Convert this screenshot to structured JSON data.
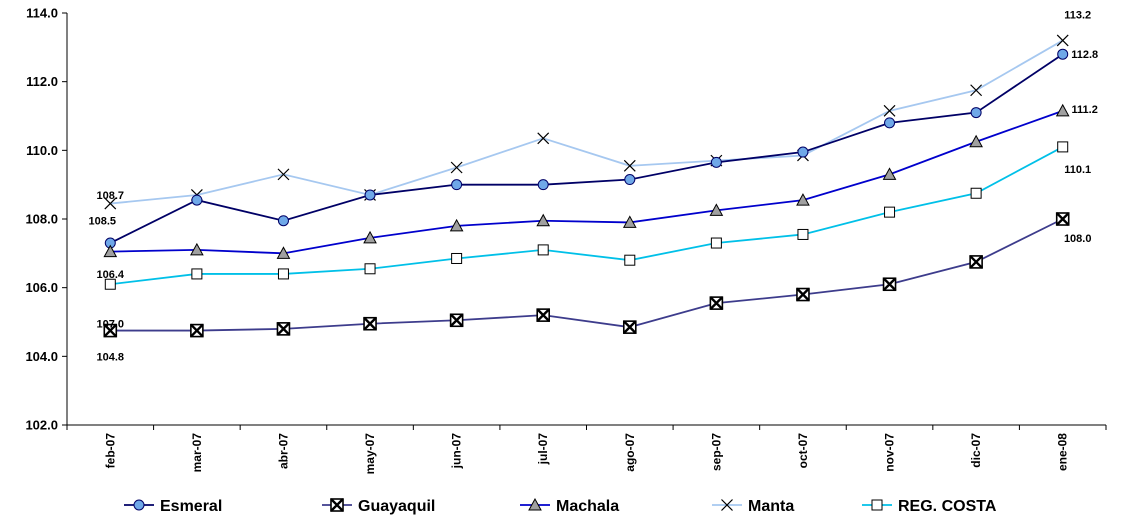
{
  "chart_data": {
    "type": "line",
    "categories": [
      "feb-07",
      "mar-07",
      "abr-07",
      "may-07",
      "jun-07",
      "jul-07",
      "ago-07",
      "sep-07",
      "oct-07",
      "nov-07",
      "dic-07",
      "ene-08"
    ],
    "ylim": [
      102.0,
      114.0
    ],
    "yticks": [
      "102.0",
      "104.0",
      "106.0",
      "108.0",
      "110.0",
      "112.0",
      "114.0"
    ],
    "grid": false,
    "legend_position": "bottom",
    "series": [
      {
        "name": "Esmeral",
        "color": "#000066",
        "marker": "circle",
        "marker_fill": "#6fa8e8",
        "values": [
          107.3,
          108.55,
          107.95,
          108.7,
          109.0,
          109.0,
          109.15,
          109.65,
          109.95,
          110.8,
          111.1,
          112.8
        ]
      },
      {
        "name": "Guayaquil",
        "color": "#3d3c8c",
        "marker": "boxx",
        "marker_fill": "#ffffff",
        "values": [
          104.75,
          104.75,
          104.8,
          104.95,
          105.05,
          105.2,
          104.85,
          105.55,
          105.8,
          106.1,
          106.75,
          108.0
        ]
      },
      {
        "name": "Machala",
        "color": "#0000cc",
        "marker": "triangle",
        "marker_fill": "#a0a0a0",
        "values": [
          107.05,
          107.1,
          107.0,
          107.45,
          107.8,
          107.95,
          107.9,
          108.25,
          108.55,
          109.3,
          110.25,
          111.15
        ]
      },
      {
        "name": "Manta",
        "color": "#a6c8f0",
        "marker": "x",
        "marker_fill": "#000000",
        "values": [
          108.45,
          108.7,
          109.3,
          108.7,
          109.5,
          110.35,
          109.55,
          109.7,
          109.85,
          111.15,
          111.75,
          113.2
        ]
      },
      {
        "name": "REG. COSTA",
        "color": "#00c0e8",
        "marker": "square",
        "marker_fill": "#ffffff",
        "values": [
          106.1,
          106.4,
          106.4,
          106.55,
          106.85,
          107.1,
          106.8,
          107.3,
          107.55,
          108.2,
          108.75,
          110.1
        ]
      }
    ],
    "data_labels": [
      "108.7",
      "108.5",
      "106.4",
      "107.0",
      "104.8",
      "113.2",
      "112.8",
      "111.2",
      "110.1",
      "108.0"
    ]
  }
}
